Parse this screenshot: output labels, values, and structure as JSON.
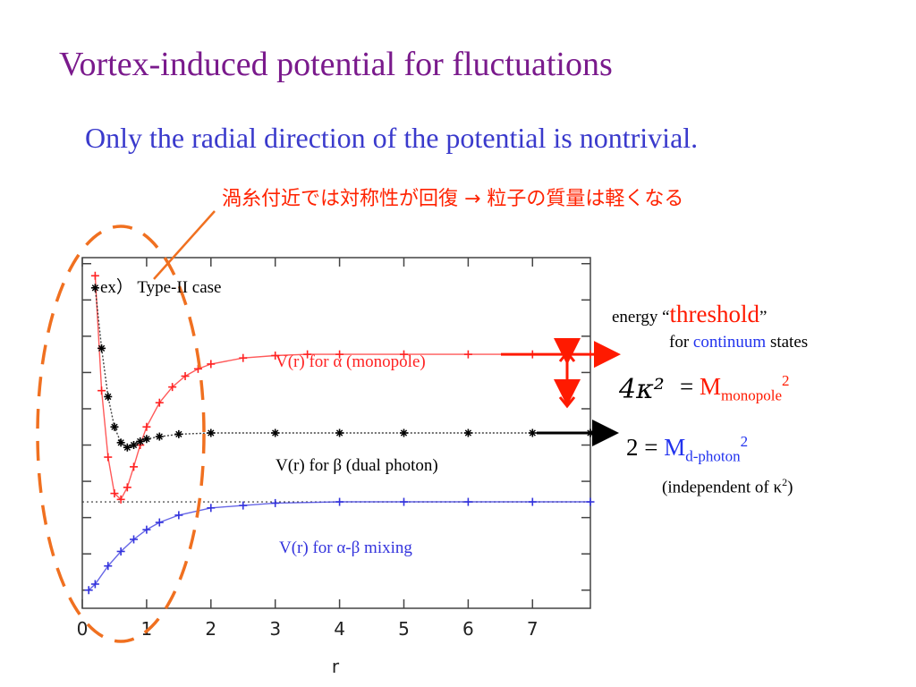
{
  "slide": {
    "title": "Vortex-induced potential for fluctuations",
    "subtitle": "Only the radial direction of the potential is nontrivial.",
    "jp_note": "渦糸付近では対称性が回復 → 粒子の質量は軽くなる"
  },
  "labels": {
    "case": "ex） Type-II case",
    "alpha": "V(r) for α (monopole)",
    "beta": "V(r) for β (dual photon)",
    "mixing": "V(r) for α-β mixing",
    "energy_prefix": "energy “",
    "threshold": "threshold",
    "energy_suffix": "”",
    "for_prefix": "for ",
    "continuum": "continuum",
    "states": " states",
    "kappa_expr": "4κ²",
    "eq_sign": "= ",
    "m_monopole": "M",
    "monopole_sub": "monopole",
    "monopole_sup": "2",
    "photon_lhs": "2 = ",
    "m_photon": "M",
    "photon_sub": "d-photon",
    "photon_sup": "2",
    "indep_prefix": "(independent of κ",
    "indep_sup": "2",
    "indep_suffix": ")"
  },
  "colors": {
    "title": "#7a1a8c",
    "subtitle": "#3a3acc",
    "note": "#ff2200",
    "alpha": "#ff2222",
    "beta": "#000000",
    "mixing": "#3333dd",
    "annotation": "#f07020"
  },
  "chart_data": {
    "type": "scatter",
    "xlabel": "r",
    "x_ticks": [
      "0",
      "1",
      "2",
      "3",
      "4",
      "5",
      "6",
      "7"
    ],
    "xlim": [
      0,
      7.9
    ],
    "ylim": [
      -1.45,
      1.45
    ],
    "grid": false,
    "series": [
      {
        "name": "V(r) for α (monopole)",
        "color": "#ff2222",
        "x": [
          0.2,
          0.3,
          0.4,
          0.5,
          0.6,
          0.7,
          0.8,
          0.9,
          1.0,
          1.2,
          1.4,
          1.6,
          1.8,
          2.0,
          2.5,
          3.0,
          3.5,
          4.0,
          5.0,
          6.0,
          7.0,
          7.9
        ],
        "y": [
          1.3,
          0.35,
          -0.2,
          -0.5,
          -0.55,
          -0.45,
          -0.28,
          -0.1,
          0.05,
          0.25,
          0.38,
          0.47,
          0.53,
          0.57,
          0.62,
          0.64,
          0.65,
          0.65,
          0.65,
          0.65,
          0.65,
          0.65
        ]
      },
      {
        "name": "V(r) for β (dual photon)",
        "color": "#000000",
        "x": [
          0.2,
          0.3,
          0.4,
          0.5,
          0.6,
          0.7,
          0.8,
          0.9,
          1.0,
          1.2,
          1.5,
          2.0,
          3.0,
          4.0,
          5.0,
          6.0,
          7.0,
          7.9
        ],
        "y": [
          1.2,
          0.7,
          0.3,
          0.05,
          -0.08,
          -0.12,
          -0.1,
          -0.07,
          -0.05,
          -0.03,
          -0.01,
          0,
          0,
          0,
          0,
          0,
          0,
          0
        ]
      },
      {
        "name": "V(r) for α-β mixing",
        "color": "#3333dd",
        "x": [
          0.1,
          0.2,
          0.4,
          0.6,
          0.8,
          1.0,
          1.2,
          1.5,
          2.0,
          2.5,
          3.0,
          4.0,
          5.0,
          6.0,
          7.0,
          7.9
        ],
        "y": [
          -1.3,
          -1.25,
          -1.1,
          -0.98,
          -0.88,
          -0.8,
          -0.74,
          -0.68,
          -0.62,
          -0.6,
          -0.58,
          -0.57,
          -0.57,
          -0.57,
          -0.57,
          -0.57
        ]
      }
    ]
  }
}
